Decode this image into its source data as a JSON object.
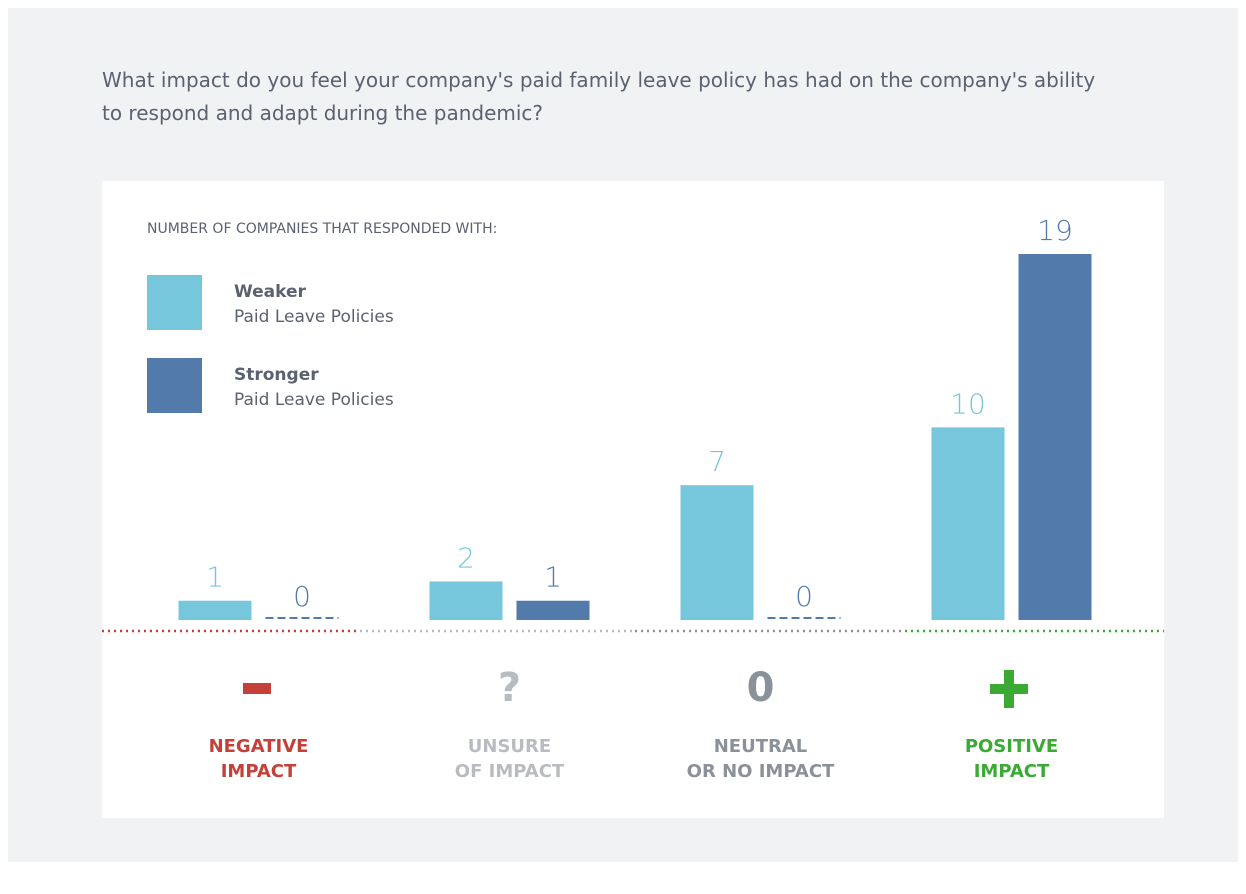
{
  "chart_data": {
    "type": "bar",
    "title": "What impact do you feel your company's paid family leave policy has had on the company's ability to respond and adapt during the pandemic?",
    "subtitle": "NUMBER OF COMPANIES THAT RESPONDED WITH:",
    "categories": [
      [
        "NEGATIVE",
        "IMPACT"
      ],
      [
        "UNSURE",
        "OF IMPACT"
      ],
      [
        "NEUTRAL",
        "OR NO IMPACT"
      ],
      [
        "POSITIVE",
        "IMPACT"
      ]
    ],
    "category_icons": [
      null,
      "?",
      "0",
      null
    ],
    "category_colors": [
      "#c4413a",
      "#b8bcc1",
      "#8b9199",
      "#3aaa35"
    ],
    "series": [
      {
        "name": "Weaker",
        "description": "Paid Leave Policies",
        "color": "#76c7dc",
        "values": [
          1,
          2,
          7,
          10
        ]
      },
      {
        "name": "Stronger",
        "description": "Paid Leave Policies",
        "color": "#527bab",
        "values": [
          0,
          1,
          0,
          19
        ]
      }
    ],
    "ylim": [
      0,
      19
    ]
  }
}
